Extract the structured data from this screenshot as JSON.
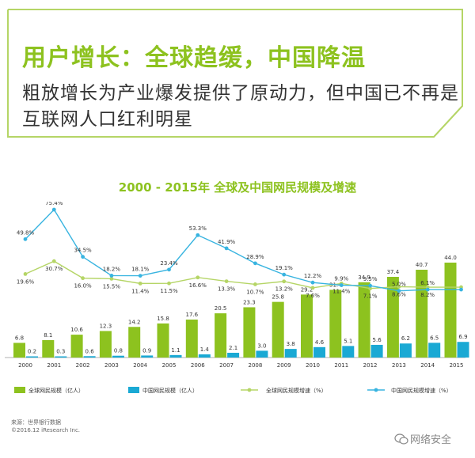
{
  "header": {
    "title": "用户增长：全球趋缓，中国降温",
    "subtitle_line1": "粗放增长为产业爆发提供了原动力，但中国已不再是",
    "subtitle_line2": "互联网人口红利明星"
  },
  "footer": {
    "source": "来源：世界银行数据",
    "copyright": "©2016.12 iResearch Inc.",
    "watermark": "网络安全"
  },
  "colors": {
    "green": "#8dc21f",
    "cyan": "#1aa9d4",
    "green_line": "#b5d566",
    "cyan_line": "#38b4e0"
  },
  "chart_data": {
    "type": "bar+line",
    "title": "2000 - 2015年 全球及中国网民规模及增速",
    "categories": [
      "2000",
      "2001",
      "2002",
      "2003",
      "2004",
      "2005",
      "2006",
      "2007",
      "2008",
      "2009",
      "2010",
      "2011",
      "2012",
      "2013",
      "2014",
      "2015"
    ],
    "series": [
      {
        "name": "全球网民规模（亿人）",
        "kind": "bar",
        "values": [
          6.8,
          8.1,
          10.6,
          12.3,
          14.2,
          15.8,
          17.6,
          20.5,
          23.3,
          25.8,
          29.2,
          31.4,
          34.9,
          37.4,
          40.7,
          44.0
        ],
        "labels": [
          "6.8",
          "8.1",
          "10.6",
          "12.3",
          "14.2",
          "15.8",
          "17.6",
          "20.5",
          "23.3",
          "25.8",
          "29.2",
          "31.4",
          "34.9",
          "37.4",
          "40.7",
          "44.0"
        ]
      },
      {
        "name": "中国网民规模（亿人）",
        "kind": "bar",
        "values": [
          0.2,
          0.3,
          0.6,
          0.8,
          0.9,
          1.1,
          1.4,
          2.1,
          3.0,
          3.8,
          4.6,
          5.1,
          5.6,
          6.2,
          6.5,
          6.9
        ],
        "labels": [
          "0.2",
          "0.3",
          "0.6",
          "0.8",
          "0.9",
          "1.1",
          "1.4",
          "2.1",
          "3.0",
          "3.8",
          "4.6",
          "5.1",
          "5.6",
          "6.2",
          "6.5",
          "6.9"
        ]
      },
      {
        "name": "全球网民规模增速（%）",
        "kind": "line",
        "values": [
          19.6,
          30.7,
          16.0,
          15.5,
          11.4,
          11.5,
          16.6,
          13.3,
          10.7,
          13.2,
          7.6,
          11.4,
          7.1,
          8.6,
          8.2,
          8.2
        ],
        "labels": [
          "19.6%",
          "30.7%",
          "16.0%",
          "15.5%",
          "11.4%",
          "11.5%",
          "16.6%",
          "13.3%",
          "10.7%",
          "13.2%",
          "7.6%",
          "11.4%",
          "7.1%",
          "8.6%",
          "8.2%",
          ""
        ]
      },
      {
        "name": "中国网民规模增速（%）",
        "kind": "line",
        "values": [
          49.8,
          75.4,
          34.5,
          18.2,
          18.1,
          23.4,
          53.3,
          41.9,
          28.9,
          19.1,
          12.2,
          9.9,
          9.5,
          5.0,
          6.1,
          6.1
        ],
        "labels": [
          "49.8%",
          "75.4%",
          "34.5%",
          "18.2%",
          "18.1%",
          "23.4%",
          "53.3%",
          "41.9%",
          "28.9%",
          "19.1%",
          "12.2%",
          "9.9%",
          "9.5%",
          "5.0%",
          "6.1%",
          ""
        ]
      }
    ],
    "xlabel": "",
    "ylabel": "",
    "legend_position": "bottom",
    "grid": false
  }
}
